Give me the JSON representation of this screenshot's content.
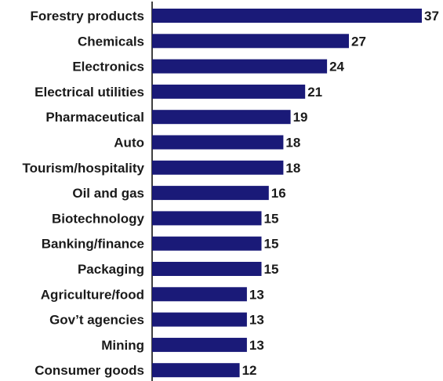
{
  "chart_data": {
    "type": "bar",
    "orientation": "horizontal",
    "categories": [
      "Forestry products",
      "Chemicals",
      "Electronics",
      "Electrical utilities",
      "Pharmaceutical",
      "Auto",
      "Tourism/hospitality",
      "Oil and gas",
      "Biotechnology",
      "Banking/finance",
      "Packaging",
      "Agriculture/food",
      "Gov’t agencies",
      "Mining",
      "Consumer goods"
    ],
    "values": [
      37,
      27,
      24,
      21,
      19,
      18,
      18,
      16,
      15,
      15,
      15,
      13,
      13,
      13,
      12
    ],
    "xlim": [
      0,
      37
    ],
    "bar_color": "#1a1a78",
    "grid": false,
    "data_labels": true,
    "title": "",
    "xlabel": "",
    "ylabel": ""
  }
}
